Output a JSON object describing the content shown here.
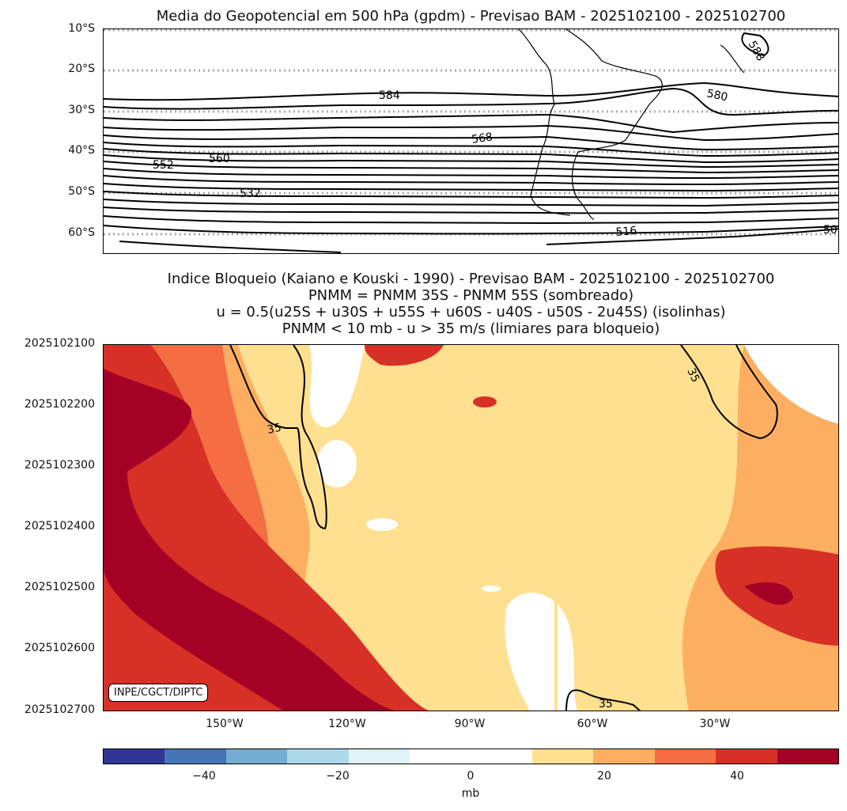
{
  "chart_data": [
    {
      "type": "contour",
      "title": "Media do Geopotencial em 500 hPa (gpdm) - Previsao BAM - 2025102100 - 2025102700",
      "y_ticks": [
        "10°S",
        "20°S",
        "30°S",
        "40°S",
        "50°S",
        "60°S"
      ],
      "contour_labels": [
        "588",
        "584",
        "580",
        "568",
        "560",
        "552",
        "532",
        "516",
        "50"
      ],
      "lat_range": [
        -10,
        -65
      ]
    },
    {
      "type": "heatmap",
      "title_lines": [
        "Indice Bloqueio (Kaiano e Kouski - 1990) - Previsao BAM - 2025102100 - 2025102700",
        "PNMM = PNMM 35S - PNMM 55S (sombreado)",
        "u = 0.5(u25S + u30S + u55S + u60S - u40S - u50S - 2u45S) (isolinhas)",
        "PNMM < 10 mb - u > 35 m/s (limiares para bloqueio)"
      ],
      "y_ticks": [
        "2025102100",
        "2025102200",
        "2025102300",
        "2025102400",
        "2025102500",
        "2025102600",
        "2025102700"
      ],
      "x_ticks": [
        "150°W",
        "120°W",
        "90°W",
        "60°W",
        "30°W"
      ],
      "contour_labels": [
        "35",
        "35",
        "35"
      ],
      "colorbar": {
        "ticks": [
          "−40",
          "−20",
          "0",
          "20",
          "40"
        ],
        "unit": "mb",
        "colors": [
          "#313695",
          "#4575b4",
          "#74add1",
          "#abd9e9",
          "#e0f3f8",
          "#ffffff",
          "#ffffff",
          "#fee090",
          "#fdae61",
          "#f46d43",
          "#d73027",
          "#a50026"
        ]
      },
      "credit": "INPE/CGCT/DIPTC"
    }
  ]
}
